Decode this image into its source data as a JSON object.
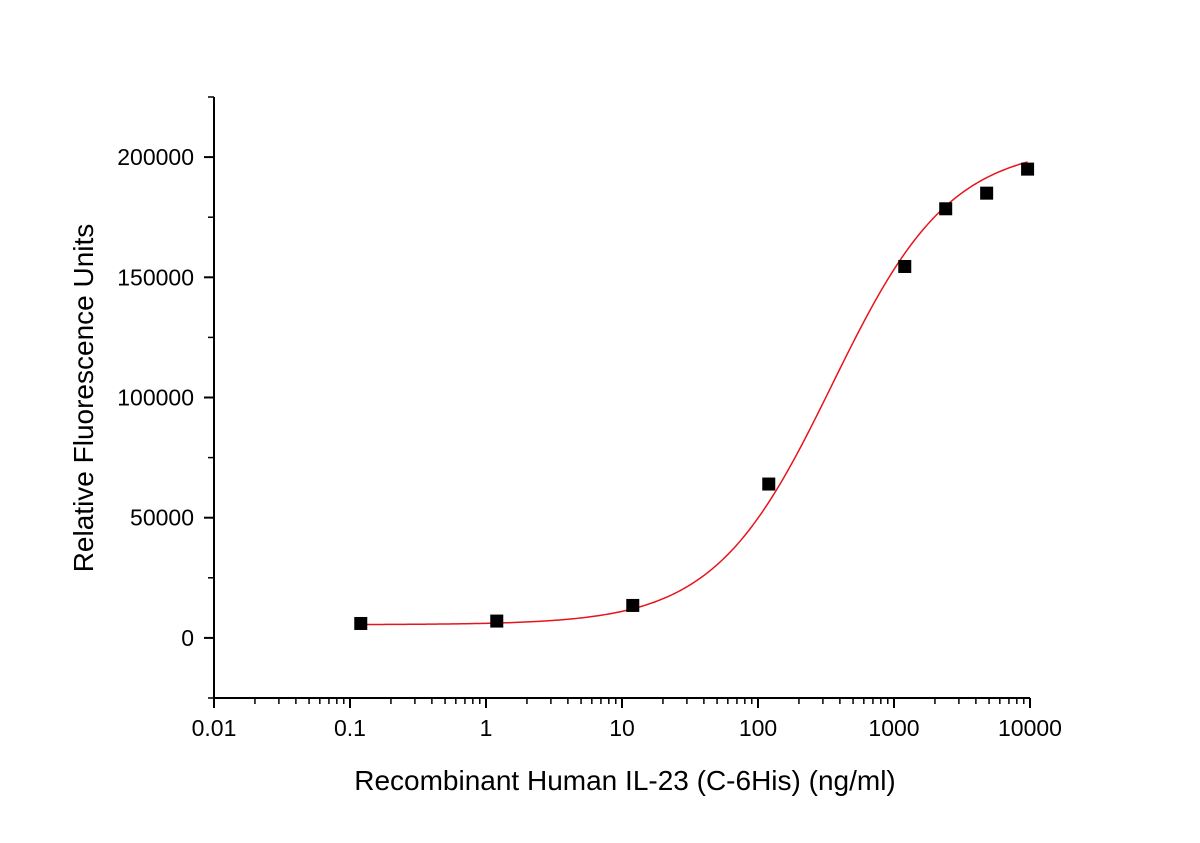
{
  "chart_data": {
    "type": "scatter",
    "xlabel": "Recombinant Human IL-23 (C-6His) (ng/ml)",
    "ylabel": "Relative Fluorescence Units",
    "xscale": "log",
    "xlim": [
      0.01,
      10000
    ],
    "ylim": [
      -25000,
      225000
    ],
    "xticks": [
      "0.01",
      "0.1",
      "1",
      "10",
      "100",
      "1000",
      "10000"
    ],
    "yticks": [
      "0",
      "50000",
      "100000",
      "150000",
      "200000"
    ],
    "grid": false,
    "legend": "none",
    "series": [
      {
        "marker": "square",
        "color": "#000000",
        "x": [
          0.12,
          1.2,
          12,
          120,
          1200,
          2400,
          4800,
          9600
        ],
        "y": [
          6000,
          7000,
          13500,
          64000,
          154500,
          178500,
          185000,
          195000
        ]
      }
    ],
    "fit": {
      "type": "4PL",
      "color": "#e8141c",
      "bottom": 5500,
      "top": 205000,
      "ec50": 350,
      "hill": 1.0
    }
  }
}
